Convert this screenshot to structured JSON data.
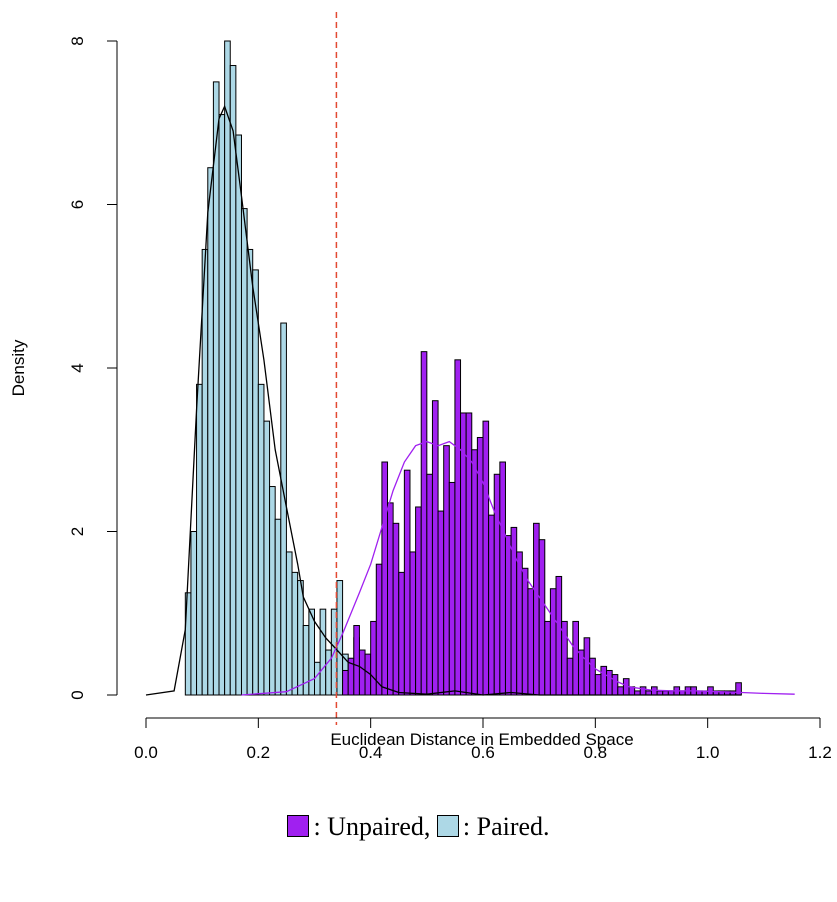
{
  "chart_data": {
    "type": "histogram",
    "xlabel": "Euclidean Distance in Embedded Space",
    "ylabel": "Density",
    "xlim": [
      0.0,
      1.2
    ],
    "ylim": [
      0,
      8
    ],
    "x_ticks": [
      "0.0",
      "0.2",
      "0.4",
      "0.6",
      "0.8",
      "1.0",
      "1.2"
    ],
    "y_ticks": [
      "0",
      "2",
      "4",
      "6",
      "8"
    ],
    "threshold": 0.339,
    "threshold_color": "#e34a33",
    "bin_width": 0.01,
    "series": [
      {
        "name": "Paired",
        "color": "#add8e6",
        "bins": [
          [
            0.07,
            1.25
          ],
          [
            0.08,
            2.0
          ],
          [
            0.09,
            3.8
          ],
          [
            0.1,
            5.45
          ],
          [
            0.11,
            6.45
          ],
          [
            0.12,
            7.5
          ],
          [
            0.13,
            7.1
          ],
          [
            0.14,
            8.0
          ],
          [
            0.15,
            7.7
          ],
          [
            0.16,
            6.85
          ],
          [
            0.17,
            5.95
          ],
          [
            0.18,
            5.45
          ],
          [
            0.19,
            5.2
          ],
          [
            0.2,
            3.8
          ],
          [
            0.21,
            3.35
          ],
          [
            0.22,
            2.55
          ],
          [
            0.23,
            2.15
          ],
          [
            0.24,
            4.55
          ],
          [
            0.25,
            1.75
          ],
          [
            0.26,
            1.5
          ],
          [
            0.27,
            1.4
          ],
          [
            0.28,
            0.85
          ],
          [
            0.29,
            1.05
          ],
          [
            0.3,
            0.4
          ],
          [
            0.31,
            1.05
          ],
          [
            0.32,
            0.55
          ],
          [
            0.33,
            1.05
          ],
          [
            0.34,
            1.4
          ],
          [
            0.35,
            0.5
          ],
          [
            0.36,
            0.4
          ],
          [
            0.37,
            0.7
          ],
          [
            0.38,
            0.35
          ],
          [
            0.39,
            0.25
          ],
          [
            0.4,
            0.2
          ],
          [
            0.41,
            0.15
          ],
          [
            0.42,
            0.1
          ]
        ],
        "density_curve": [
          [
            0.0,
            0
          ],
          [
            0.05,
            0.05
          ],
          [
            0.07,
            0.8
          ],
          [
            0.09,
            3.5
          ],
          [
            0.11,
            5.9
          ],
          [
            0.13,
            7.05
          ],
          [
            0.14,
            7.2
          ],
          [
            0.155,
            6.9
          ],
          [
            0.17,
            6.1
          ],
          [
            0.19,
            5.0
          ],
          [
            0.21,
            4.1
          ],
          [
            0.23,
            3.0
          ],
          [
            0.25,
            2.3
          ],
          [
            0.27,
            1.6
          ],
          [
            0.28,
            1.2
          ],
          [
            0.3,
            0.9
          ],
          [
            0.32,
            0.7
          ],
          [
            0.34,
            0.55
          ],
          [
            0.36,
            0.4
          ],
          [
            0.38,
            0.35
          ],
          [
            0.4,
            0.25
          ],
          [
            0.42,
            0.1
          ],
          [
            0.45,
            0.03
          ],
          [
            0.5,
            0.01
          ],
          [
            0.55,
            0.05
          ],
          [
            0.6,
            0.0
          ],
          [
            0.65,
            0.03
          ],
          [
            0.7,
            0.0
          ],
          [
            1.06,
            0
          ]
        ]
      },
      {
        "name": "Unpaired",
        "color": "#a020f0",
        "bins": [
          [
            0.35,
            0.3
          ],
          [
            0.36,
            0.45
          ],
          [
            0.37,
            0.85
          ],
          [
            0.38,
            0.55
          ],
          [
            0.39,
            0.5
          ],
          [
            0.4,
            0.9
          ],
          [
            0.41,
            1.6
          ],
          [
            0.42,
            2.85
          ],
          [
            0.43,
            2.35
          ],
          [
            0.44,
            2.1
          ],
          [
            0.45,
            1.5
          ],
          [
            0.46,
            2.75
          ],
          [
            0.47,
            1.75
          ],
          [
            0.48,
            2.3
          ],
          [
            0.49,
            4.2
          ],
          [
            0.5,
            2.7
          ],
          [
            0.51,
            3.6
          ],
          [
            0.52,
            2.25
          ],
          [
            0.53,
            3.05
          ],
          [
            0.54,
            2.6
          ],
          [
            0.55,
            4.1
          ],
          [
            0.56,
            3.45
          ],
          [
            0.57,
            3.45
          ],
          [
            0.58,
            3.0
          ],
          [
            0.59,
            3.15
          ],
          [
            0.6,
            3.35
          ],
          [
            0.61,
            2.2
          ],
          [
            0.62,
            2.7
          ],
          [
            0.63,
            2.85
          ],
          [
            0.64,
            1.95
          ],
          [
            0.65,
            2.05
          ],
          [
            0.66,
            1.75
          ],
          [
            0.67,
            1.55
          ],
          [
            0.68,
            1.3
          ],
          [
            0.69,
            2.1
          ],
          [
            0.7,
            1.9
          ],
          [
            0.71,
            0.9
          ],
          [
            0.72,
            1.3
          ],
          [
            0.73,
            1.45
          ],
          [
            0.74,
            0.9
          ],
          [
            0.75,
            0.45
          ],
          [
            0.76,
            0.9
          ],
          [
            0.77,
            0.55
          ],
          [
            0.78,
            0.7
          ],
          [
            0.79,
            0.45
          ],
          [
            0.8,
            0.25
          ],
          [
            0.81,
            0.35
          ],
          [
            0.82,
            0.3
          ],
          [
            0.83,
            0.25
          ],
          [
            0.84,
            0.1
          ],
          [
            0.85,
            0.2
          ],
          [
            0.86,
            0.1
          ],
          [
            0.87,
            0.05
          ],
          [
            0.88,
            0.1
          ],
          [
            0.89,
            0.05
          ],
          [
            0.9,
            0.1
          ],
          [
            0.91,
            0.05
          ],
          [
            0.92,
            0.05
          ],
          [
            0.93,
            0.05
          ],
          [
            0.94,
            0.1
          ],
          [
            0.95,
            0.05
          ],
          [
            0.96,
            0.1
          ],
          [
            0.97,
            0.1
          ],
          [
            0.98,
            0.05
          ],
          [
            0.99,
            0.05
          ],
          [
            1.0,
            0.1
          ],
          [
            1.01,
            0.05
          ],
          [
            1.02,
            0.05
          ],
          [
            1.03,
            0.05
          ],
          [
            1.04,
            0.05
          ],
          [
            1.05,
            0.15
          ]
        ],
        "density_curve": [
          [
            0.17,
            0
          ],
          [
            0.25,
            0.04
          ],
          [
            0.3,
            0.2
          ],
          [
            0.33,
            0.45
          ],
          [
            0.35,
            0.75
          ],
          [
            0.38,
            1.25
          ],
          [
            0.4,
            1.6
          ],
          [
            0.42,
            2.05
          ],
          [
            0.44,
            2.5
          ],
          [
            0.46,
            2.85
          ],
          [
            0.48,
            3.05
          ],
          [
            0.5,
            3.1
          ],
          [
            0.52,
            3.05
          ],
          [
            0.54,
            3.1
          ],
          [
            0.56,
            3.0
          ],
          [
            0.58,
            2.85
          ],
          [
            0.6,
            2.6
          ],
          [
            0.62,
            2.25
          ],
          [
            0.64,
            1.95
          ],
          [
            0.66,
            1.65
          ],
          [
            0.68,
            1.4
          ],
          [
            0.7,
            1.2
          ],
          [
            0.72,
            1.0
          ],
          [
            0.74,
            0.8
          ],
          [
            0.76,
            0.6
          ],
          [
            0.78,
            0.45
          ],
          [
            0.8,
            0.32
          ],
          [
            0.82,
            0.24
          ],
          [
            0.84,
            0.16
          ],
          [
            0.86,
            0.1
          ],
          [
            0.88,
            0.08
          ],
          [
            0.9,
            0.06
          ],
          [
            0.94,
            0.05
          ],
          [
            0.98,
            0.05
          ],
          [
            1.02,
            0.04
          ],
          [
            1.06,
            0.03
          ],
          [
            1.1,
            0.02
          ],
          [
            1.155,
            0.01
          ]
        ]
      }
    ]
  },
  "legend": {
    "unpaired_label": ": Unpaired,",
    "paired_label": ": Paired.",
    "unpaired_color": "#a020f0",
    "paired_color": "#add8e6"
  }
}
